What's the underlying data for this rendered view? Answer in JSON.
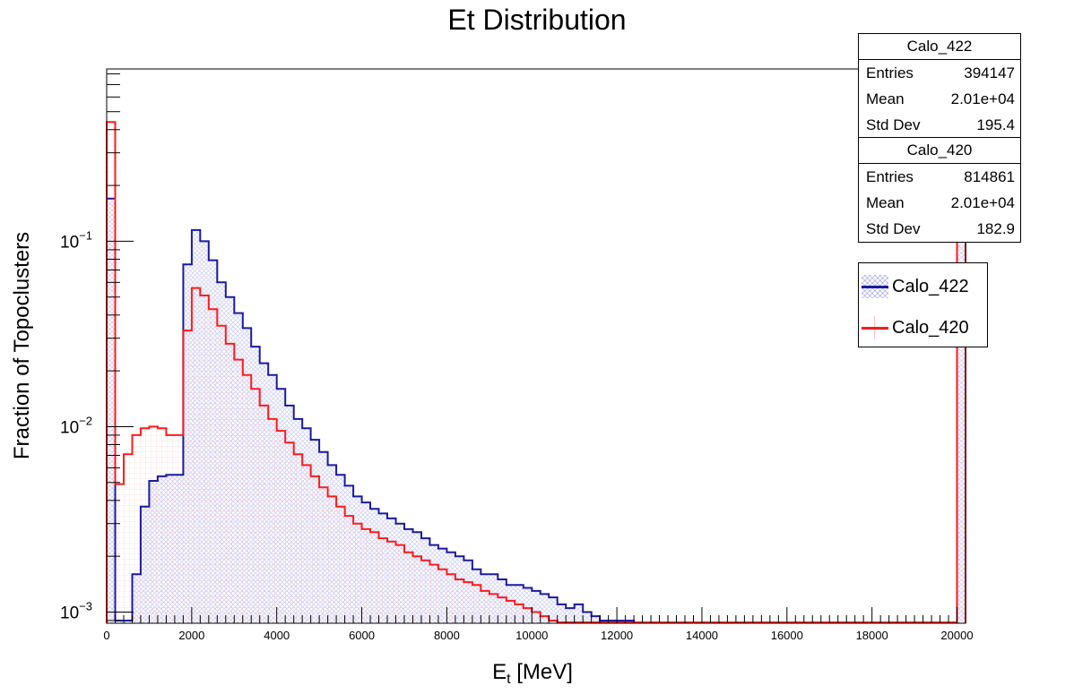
{
  "chart_data": {
    "type": "histogram",
    "title": "Et Distribution",
    "xlabel_main": "E",
    "xlabel_sub": "t",
    "xlabel_unit": "[MeV]",
    "ylabel": "Fraction of Topoclusters",
    "y_scale": "log",
    "xlim": [
      0,
      20200
    ],
    "ylim": [
      0.00087,
      0.85
    ],
    "x_ticks": [
      "0",
      "2000",
      "4000",
      "6000",
      "8000",
      "10000",
      "12000",
      "14000",
      "16000",
      "18000",
      "20000"
    ],
    "y_ticks": [
      {
        "value": 0.1,
        "base": "10",
        "exp": "−1"
      },
      {
        "value": 0.01,
        "base": "10",
        "exp": "−2"
      },
      {
        "value": 0.001,
        "base": "10",
        "exp": "−3"
      }
    ],
    "bin_width": 200,
    "series": [
      {
        "name": "Calo_422",
        "color": "#1a1aa0",
        "fill": "hatched-blue",
        "values": [
          0.17,
          0.0009,
          0.0009,
          0.0016,
          0.0037,
          0.0051,
          0.0054,
          0.0055,
          0.0055,
          0.075,
          0.115,
          0.1,
          0.079,
          0.06,
          0.05,
          0.041,
          0.034,
          0.027,
          0.022,
          0.019,
          0.016,
          0.013,
          0.011,
          0.0098,
          0.0085,
          0.0073,
          0.0062,
          0.0055,
          0.0048,
          0.0042,
          0.0039,
          0.0036,
          0.0034,
          0.0032,
          0.003,
          0.0028,
          0.0027,
          0.0025,
          0.0023,
          0.0022,
          0.0021,
          0.002,
          0.0019,
          0.0017,
          0.0016,
          0.0016,
          0.0015,
          0.0014,
          0.0014,
          0.00135,
          0.0013,
          0.00125,
          0.0012,
          0.0011,
          0.00105,
          0.0011,
          0.001,
          0.00095,
          0.0009,
          0.0009,
          0.0009,
          0.0009,
          0.00088,
          0.00088,
          0.00088,
          0.00088,
          0.00088,
          0.00088,
          0.00088,
          0.00088,
          0.00088,
          0.00088,
          0.00088,
          0.00088,
          0.00088,
          0.00088,
          0.00088,
          0.00088,
          0.00088,
          0.00088,
          0.00088,
          0.00088,
          0.00088,
          0.00088,
          0.00088,
          0.00088,
          0.00088,
          0.00088,
          0.00088,
          0.00088,
          0.00088,
          0.00088,
          0.00088,
          0.00088,
          0.00088,
          0.00088,
          0.00088,
          0.00088,
          0.00088,
          0.00088,
          0.8
        ],
        "stats": {
          "header": "Calo_422",
          "entries": "394147",
          "mean": "2.01e+04",
          "std_dev": "195.4"
        }
      },
      {
        "name": "Calo_420",
        "color": "#ff1a1a",
        "fill": "hatched-red",
        "values": [
          0.44,
          0.0049,
          0.0071,
          0.009,
          0.0098,
          0.01,
          0.0098,
          0.009,
          0.009,
          0.033,
          0.056,
          0.051,
          0.043,
          0.035,
          0.028,
          0.023,
          0.019,
          0.016,
          0.013,
          0.011,
          0.0095,
          0.0082,
          0.0071,
          0.0062,
          0.0054,
          0.0047,
          0.0042,
          0.0037,
          0.0033,
          0.003,
          0.0028,
          0.0027,
          0.0025,
          0.0024,
          0.0023,
          0.0021,
          0.002,
          0.0019,
          0.0018,
          0.0017,
          0.0016,
          0.0015,
          0.00145,
          0.0014,
          0.0013,
          0.00125,
          0.0012,
          0.00115,
          0.0011,
          0.00105,
          0.001,
          0.00095,
          0.0009,
          0.00088,
          0.00088,
          0.00088,
          0.00088,
          0.00088,
          0.00088,
          0.00088,
          0.00088,
          0.00088,
          0.00088,
          0.00088,
          0.00088,
          0.00088,
          0.00088,
          0.00088,
          0.00088,
          0.00088,
          0.00088,
          0.00088,
          0.00088,
          0.00088,
          0.00088,
          0.00088,
          0.00088,
          0.00088,
          0.00088,
          0.00088,
          0.00088,
          0.00088,
          0.00088,
          0.00088,
          0.00088,
          0.00088,
          0.00088,
          0.00088,
          0.00088,
          0.00088,
          0.00088,
          0.00088,
          0.00088,
          0.00088,
          0.00088,
          0.00088,
          0.00088,
          0.00088,
          0.00088,
          0.00088,
          0.8
        ],
        "stats": {
          "header": "Calo_420",
          "entries": "814861",
          "mean": "2.01e+04",
          "std_dev": "182.9"
        }
      }
    ],
    "stats_labels": {
      "entries": "Entries",
      "mean": "Mean",
      "std_dev": "Std Dev"
    },
    "legend_placement": "right",
    "grid": false
  }
}
